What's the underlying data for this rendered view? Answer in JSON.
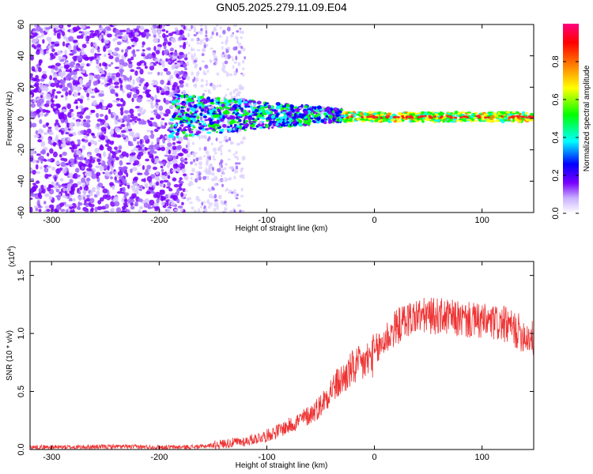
{
  "title": "GN05.2025.279.11.09.E04",
  "chart_data": [
    {
      "type": "heatmap",
      "xlabel": "Height of straight line (km)",
      "ylabel": "Frequency (Hz)",
      "xlim": [
        -320,
        148
      ],
      "ylim": [
        -60,
        60
      ],
      "x_ticks": [
        -300,
        -200,
        -100,
        0,
        100
      ],
      "y_ticks": [
        -60,
        -40,
        -20,
        0,
        20,
        40,
        60
      ],
      "colorbar": {
        "label": "Normalized spectral amplitude",
        "range": [
          0,
          1
        ],
        "ticks": [
          0.0,
          0.2,
          0.4,
          0.6,
          0.8
        ],
        "colormap": [
          "#ffffff",
          "#c8b0ff",
          "#7a00ff",
          "#0000ff",
          "#00ffff",
          "#00ff00",
          "#ffff00",
          "#ff8000",
          "#ff0000",
          "#ff0080"
        ]
      },
      "regions": [
        {
          "x_range": [
            -320,
            -175
          ],
          "freq_range": [
            -60,
            60
          ],
          "amplitude": 0.12,
          "note_color": "#7a00ff"
        },
        {
          "x_range": [
            -175,
            -130
          ],
          "freq_range": [
            -60,
            60
          ],
          "amplitude": 0.05,
          "note_color": "#c8b0ff"
        },
        {
          "x_range": [
            -190,
            -30
          ],
          "freq_range": [
            -15,
            15
          ],
          "amplitude": 0.35,
          "note_color": "#00c8ff"
        },
        {
          "x_range": [
            -30,
            148
          ],
          "freq_range": [
            -3,
            3
          ],
          "amplitude": 0.7,
          "note_color": "#30ff30"
        },
        {
          "x_range": [
            -30,
            148
          ],
          "freq_range": [
            0,
            2
          ],
          "amplitude": 0.95,
          "note_color": "#ff2020"
        }
      ]
    },
    {
      "type": "line",
      "xlabel": "Height of straight line (km)",
      "ylabel": "SNR (10 * v/v)",
      "y_multiplier": "(x10",
      "y_multiplier_exp": "4",
      "y_multiplier_close": ")",
      "xlim": [
        -320,
        148
      ],
      "ylim": [
        0,
        1.62
      ],
      "x_ticks": [
        -300,
        -200,
        -100,
        0,
        100
      ],
      "y_ticks": [
        0.0,
        0.5,
        1.0,
        1.5
      ],
      "line_color": "#ee3333",
      "series": [
        {
          "x": [
            -320,
            -280,
            -240,
            -200,
            -180,
            -160,
            -140,
            -120,
            -100,
            -80,
            -60,
            -50,
            -40,
            -30,
            -20,
            -10,
            0,
            10,
            20,
            30,
            40,
            60,
            80,
            100,
            120,
            148
          ],
          "y": [
            0.02,
            0.02,
            0.025,
            0.02,
            0.02,
            0.025,
            0.05,
            0.07,
            0.12,
            0.2,
            0.3,
            0.38,
            0.52,
            0.6,
            0.7,
            0.74,
            0.82,
            0.95,
            1.05,
            1.12,
            1.15,
            1.15,
            1.12,
            1.1,
            1.08,
            0.95
          ]
        }
      ]
    }
  ]
}
